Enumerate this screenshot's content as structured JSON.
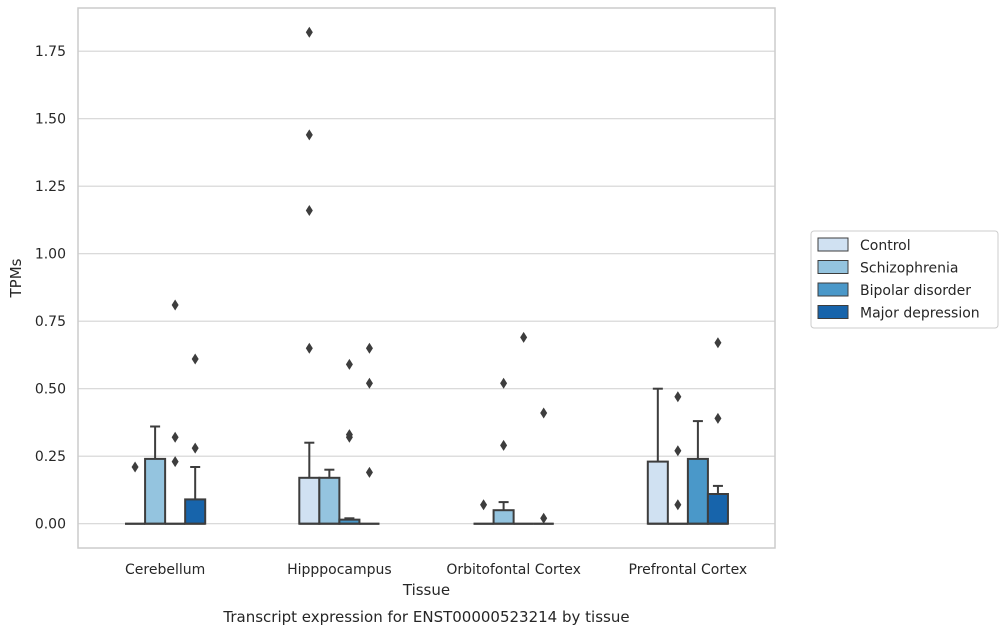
{
  "caption": "Transcript expression for ENST00000523214 by tissue",
  "chart_data": {
    "type": "box",
    "xlabel": "Tissue",
    "ylabel": "TPMs",
    "ylim": [
      -0.09,
      1.91
    ],
    "yticks": [
      0.0,
      0.25,
      0.5,
      0.75,
      1.0,
      1.25,
      1.5,
      1.75
    ],
    "ytick_labels": [
      "0.00",
      "0.25",
      "0.50",
      "0.75",
      "1.00",
      "1.25",
      "1.50",
      "1.75"
    ],
    "grid": "horizontal",
    "legend_position": "right",
    "categories": [
      "Cerebellum",
      "Hipppocampus",
      "Orbitofontal Cortex",
      "Prefrontal Cortex"
    ],
    "series": [
      {
        "name": "Control",
        "color": "#d0e1f2",
        "boxes": [
          {
            "q1": 0,
            "median": 0,
            "q3": 0,
            "whisker_low": 0,
            "whisker_high": 0,
            "outliers": [
              0.21
            ]
          },
          {
            "q1": 0,
            "median": 0,
            "q3": 0.17,
            "whisker_low": 0,
            "whisker_high": 0.3,
            "outliers": [
              0.65,
              1.16,
              1.44,
              1.82
            ]
          },
          {
            "q1": 0,
            "median": 0,
            "q3": 0,
            "whisker_low": 0,
            "whisker_high": 0,
            "outliers": [
              0.07
            ]
          },
          {
            "q1": 0,
            "median": 0,
            "q3": 0.23,
            "whisker_low": 0,
            "whisker_high": 0.5,
            "outliers": []
          }
        ]
      },
      {
        "name": "Schizophrenia",
        "color": "#94c4df",
        "boxes": [
          {
            "q1": 0,
            "median": 0,
            "q3": 0.24,
            "whisker_low": 0,
            "whisker_high": 0.36,
            "outliers": []
          },
          {
            "q1": 0,
            "median": 0,
            "q3": 0.17,
            "whisker_low": 0,
            "whisker_high": 0.2,
            "outliers": []
          },
          {
            "q1": 0,
            "median": 0,
            "q3": 0.05,
            "whisker_low": 0,
            "whisker_high": 0.08,
            "outliers": [
              0.29,
              0.52
            ]
          },
          {
            "q1": 0,
            "median": 0,
            "q3": 0,
            "whisker_low": 0,
            "whisker_high": 0,
            "outliers": [
              0.07,
              0.27,
              0.47
            ]
          }
        ]
      },
      {
        "name": "Bipolar disorder",
        "color": "#4a98c9",
        "boxes": [
          {
            "q1": 0,
            "median": 0,
            "q3": 0,
            "whisker_low": 0,
            "whisker_high": 0,
            "outliers": [
              0.23,
              0.32,
              0.81
            ]
          },
          {
            "q1": 0,
            "median": 0,
            "q3": 0.015,
            "whisker_low": 0,
            "whisker_high": 0.02,
            "outliers": [
              0.32,
              0.33,
              0.59
            ]
          },
          {
            "q1": 0,
            "median": 0,
            "q3": 0,
            "whisker_low": 0,
            "whisker_high": 0,
            "outliers": [
              0.69
            ]
          },
          {
            "q1": 0,
            "median": 0,
            "q3": 0.24,
            "whisker_low": 0,
            "whisker_high": 0.38,
            "outliers": []
          }
        ]
      },
      {
        "name": "Major depression",
        "color": "#1764ab",
        "boxes": [
          {
            "q1": 0,
            "median": 0,
            "q3": 0.09,
            "whisker_low": 0,
            "whisker_high": 0.21,
            "outliers": [
              0.28,
              0.61
            ]
          },
          {
            "q1": 0,
            "median": 0,
            "q3": 0,
            "whisker_low": 0,
            "whisker_high": 0,
            "outliers": [
              0.19,
              0.52,
              0.65
            ]
          },
          {
            "q1": 0,
            "median": 0,
            "q3": 0,
            "whisker_low": 0,
            "whisker_high": 0,
            "outliers": [
              0.02,
              0.41
            ]
          },
          {
            "q1": 0,
            "median": 0,
            "q3": 0.11,
            "whisker_low": 0,
            "whisker_high": 0.14,
            "outliers": [
              0.39,
              0.67
            ]
          }
        ]
      }
    ]
  }
}
